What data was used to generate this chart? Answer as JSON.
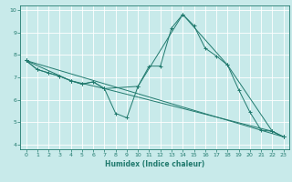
{
  "xlabel": "Humidex (Indice chaleur)",
  "ylabel": "",
  "bg_color": "#c8eaea",
  "grid_color": "#ffffff",
  "line_color": "#217a6e",
  "xlim": [
    -0.5,
    23.5
  ],
  "ylim": [
    3.8,
    10.2
  ],
  "xticks": [
    0,
    1,
    2,
    3,
    4,
    5,
    6,
    7,
    8,
    9,
    10,
    11,
    12,
    13,
    14,
    15,
    16,
    17,
    18,
    19,
    20,
    21,
    22,
    23
  ],
  "yticks": [
    4,
    5,
    6,
    7,
    8,
    9,
    10
  ],
  "lines": [
    {
      "x": [
        0,
        1,
        2,
        3,
        4,
        5,
        6,
        7,
        8,
        9,
        10,
        11,
        12,
        13,
        14,
        15,
        16,
        17,
        18,
        19,
        20,
        21,
        22,
        23
      ],
      "y": [
        7.75,
        7.35,
        7.2,
        7.05,
        6.85,
        6.7,
        6.8,
        6.5,
        5.4,
        5.2,
        6.6,
        7.5,
        7.5,
        9.2,
        9.8,
        9.3,
        8.3,
        7.95,
        7.55,
        6.45,
        5.45,
        4.65,
        4.6,
        4.35
      ]
    },
    {
      "x": [
        0,
        1,
        2,
        3,
        4,
        5,
        6,
        7,
        22,
        23
      ],
      "y": [
        7.75,
        7.35,
        7.2,
        7.05,
        6.85,
        6.7,
        6.8,
        6.5,
        4.6,
        4.35
      ]
    },
    {
      "x": [
        0,
        4,
        7,
        10,
        14,
        18,
        22,
        23
      ],
      "y": [
        7.75,
        6.85,
        6.5,
        6.6,
        9.8,
        7.55,
        4.6,
        4.35
      ]
    },
    {
      "x": [
        0,
        23
      ],
      "y": [
        7.75,
        4.35
      ]
    }
  ]
}
